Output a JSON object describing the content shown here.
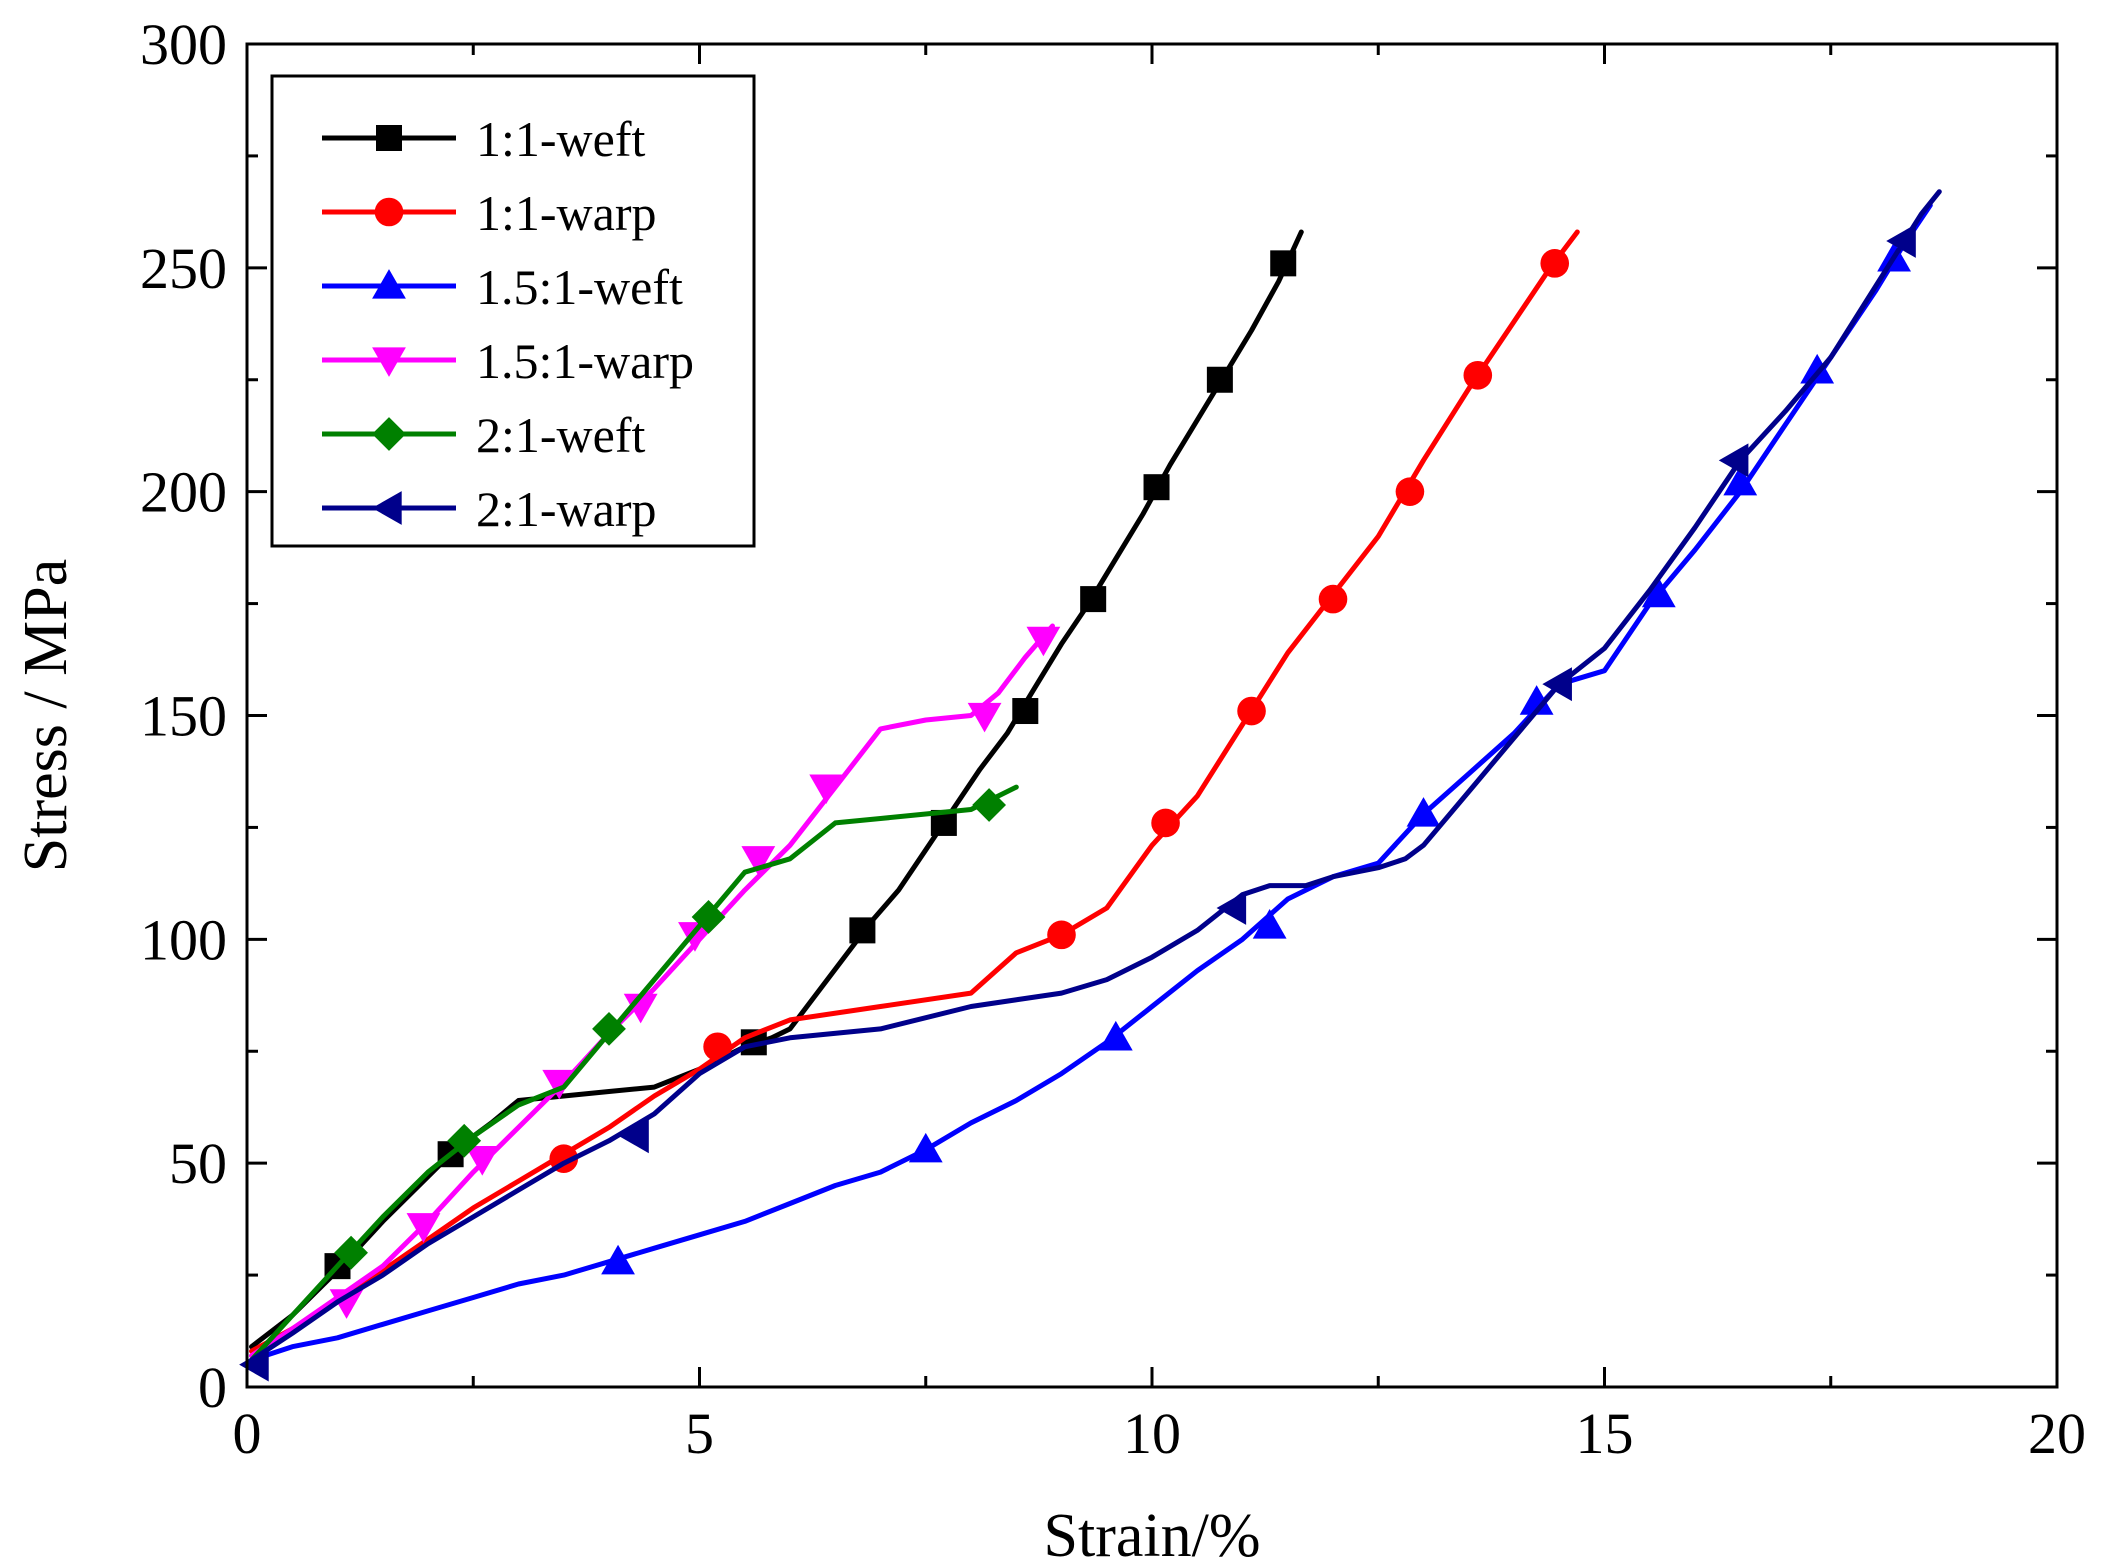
{
  "chart_data": {
    "type": "line",
    "title": "",
    "xlabel": "Strain/%",
    "ylabel": "Stress / MPa",
    "xlim": [
      0,
      20
    ],
    "ylim": [
      0,
      300
    ],
    "xticks": [
      0,
      5,
      10,
      15,
      20
    ],
    "yticks": [
      0,
      50,
      100,
      150,
      200,
      250,
      300
    ],
    "xtick_labels": [
      "0",
      "5",
      "10",
      "15",
      "20"
    ],
    "ytick_labels": [
      "0",
      "50",
      "100",
      "150",
      "200",
      "250",
      "300"
    ],
    "grid": false,
    "legend_position": "top-left",
    "series": [
      {
        "name": "1:1-weft",
        "color": "#000000",
        "marker": "square",
        "points": [
          [
            0.05,
            9
          ],
          [
            0.5,
            16
          ],
          [
            1,
            26
          ],
          [
            1.5,
            37
          ],
          [
            2,
            47
          ],
          [
            2.3,
            53
          ],
          [
            2.7,
            59
          ],
          [
            3,
            64
          ],
          [
            3.5,
            65
          ],
          [
            4,
            66
          ],
          [
            4.5,
            67
          ],
          [
            5,
            71
          ],
          [
            5.5,
            76
          ],
          [
            5.8,
            78
          ],
          [
            6,
            80
          ],
          [
            6.3,
            88
          ],
          [
            6.6,
            96
          ],
          [
            6.9,
            104
          ],
          [
            7.2,
            111
          ],
          [
            7.5,
            120
          ],
          [
            7.8,
            129
          ],
          [
            8.1,
            138
          ],
          [
            8.4,
            146
          ],
          [
            8.7,
            156
          ],
          [
            9,
            166
          ],
          [
            9.3,
            175
          ],
          [
            9.6,
            185
          ],
          [
            9.9,
            195
          ],
          [
            10.2,
            206
          ],
          [
            10.5,
            216
          ],
          [
            10.8,
            226
          ],
          [
            11.1,
            236
          ],
          [
            11.4,
            247
          ],
          [
            11.65,
            258
          ]
        ],
        "markers": [
          [
            1,
            27
          ],
          [
            2.25,
            52
          ],
          [
            5.6,
            77
          ],
          [
            6.8,
            102
          ],
          [
            7.7,
            126
          ],
          [
            8.6,
            151
          ],
          [
            9.35,
            176
          ],
          [
            10.05,
            201
          ],
          [
            10.75,
            225
          ],
          [
            11.45,
            251
          ]
        ]
      },
      {
        "name": "1:1-warp",
        "color": "#ff0000",
        "marker": "circle",
        "points": [
          [
            0.05,
            8
          ],
          [
            0.5,
            13
          ],
          [
            1,
            19
          ],
          [
            1.5,
            26
          ],
          [
            2,
            33
          ],
          [
            2.5,
            40
          ],
          [
            3,
            46
          ],
          [
            3.5,
            52
          ],
          [
            4,
            58
          ],
          [
            4.5,
            65
          ],
          [
            5,
            71
          ],
          [
            5.5,
            78
          ],
          [
            6,
            82
          ],
          [
            7,
            85
          ],
          [
            8,
            88
          ],
          [
            8.5,
            97
          ],
          [
            9,
            101
          ],
          [
            9.5,
            107
          ],
          [
            10,
            121
          ],
          [
            10.5,
            132
          ],
          [
            11,
            148
          ],
          [
            11.5,
            164
          ],
          [
            12,
            177
          ],
          [
            12.5,
            190
          ],
          [
            13,
            207
          ],
          [
            13.5,
            223
          ],
          [
            14,
            238
          ],
          [
            14.4,
            250
          ],
          [
            14.7,
            258
          ]
        ],
        "markers": [
          [
            3.5,
            51
          ],
          [
            5.2,
            76
          ],
          [
            9,
            101
          ],
          [
            10.15,
            126
          ],
          [
            11.1,
            151
          ],
          [
            12,
            176
          ],
          [
            12.85,
            200
          ],
          [
            13.6,
            226
          ],
          [
            14.45,
            251
          ]
        ]
      },
      {
        "name": "1.5:1-weft",
        "color": "#0000ff",
        "marker": "triangle-up",
        "points": [
          [
            0.05,
            6
          ],
          [
            0.5,
            9
          ],
          [
            1,
            11
          ],
          [
            1.5,
            14
          ],
          [
            2,
            17
          ],
          [
            2.5,
            20
          ],
          [
            3,
            23
          ],
          [
            3.5,
            25
          ],
          [
            4,
            28
          ],
          [
            4.5,
            31
          ],
          [
            5,
            34
          ],
          [
            5.5,
            37
          ],
          [
            6,
            41
          ],
          [
            6.5,
            45
          ],
          [
            7,
            48
          ],
          [
            7.5,
            53
          ],
          [
            8,
            59
          ],
          [
            8.5,
            64
          ],
          [
            9,
            70
          ],
          [
            9.5,
            77
          ],
          [
            10,
            85
          ],
          [
            10.5,
            93
          ],
          [
            11,
            100
          ],
          [
            11.5,
            109
          ],
          [
            12,
            114
          ],
          [
            12.5,
            117
          ],
          [
            13,
            128
          ],
          [
            13.5,
            137
          ],
          [
            14,
            146
          ],
          [
            14.5,
            157
          ],
          [
            15,
            160
          ],
          [
            15.5,
            175
          ],
          [
            16,
            187
          ],
          [
            16.5,
            200
          ],
          [
            17,
            215
          ],
          [
            17.5,
            230
          ],
          [
            18,
            245
          ],
          [
            18.3,
            255
          ],
          [
            18.6,
            264
          ]
        ],
        "markers": [
          [
            4.1,
            28
          ],
          [
            7.5,
            53
          ],
          [
            9.6,
            78
          ],
          [
            11.3,
            103
          ],
          [
            13,
            128
          ],
          [
            14.25,
            153
          ],
          [
            15.6,
            177
          ],
          [
            16.5,
            202
          ],
          [
            17.35,
            227
          ],
          [
            18.2,
            252
          ]
        ]
      },
      {
        "name": "1.5:1-warp",
        "color": "#ff00ff",
        "marker": "triangle-down",
        "points": [
          [
            0.05,
            7
          ],
          [
            0.5,
            13
          ],
          [
            1,
            20
          ],
          [
            1.5,
            27
          ],
          [
            2,
            37
          ],
          [
            2.5,
            48
          ],
          [
            3,
            58
          ],
          [
            3.5,
            68
          ],
          [
            4,
            79
          ],
          [
            4.5,
            89
          ],
          [
            5,
            100
          ],
          [
            5.5,
            111
          ],
          [
            6,
            121
          ],
          [
            6.5,
            134
          ],
          [
            7,
            147
          ],
          [
            7.5,
            149
          ],
          [
            8,
            150
          ],
          [
            8.3,
            155
          ],
          [
            8.6,
            163
          ],
          [
            8.9,
            170
          ]
        ],
        "markers": [
          [
            1.1,
            19
          ],
          [
            1.95,
            36
          ],
          [
            2.6,
            51
          ],
          [
            3.45,
            68
          ],
          [
            4.35,
            85
          ],
          [
            4.95,
            101
          ],
          [
            5.65,
            118
          ],
          [
            6.4,
            134
          ],
          [
            8.15,
            150
          ],
          [
            8.8,
            167
          ]
        ]
      },
      {
        "name": "2:1-weft",
        "color": "#008000",
        "marker": "diamond",
        "points": [
          [
            0.05,
            6
          ],
          [
            0.5,
            16
          ],
          [
            1,
            27
          ],
          [
            1.5,
            38
          ],
          [
            2,
            48
          ],
          [
            2.5,
            56
          ],
          [
            3,
            63
          ],
          [
            3.5,
            67
          ],
          [
            4,
            79
          ],
          [
            4.5,
            91
          ],
          [
            5,
            103
          ],
          [
            5.5,
            115
          ],
          [
            6,
            118
          ],
          [
            6.5,
            126
          ],
          [
            7,
            127
          ],
          [
            7.5,
            128
          ],
          [
            8,
            129
          ],
          [
            8.5,
            134
          ]
        ],
        "markers": [
          [
            1.15,
            30
          ],
          [
            2.4,
            55
          ],
          [
            4,
            80
          ],
          [
            5.1,
            105
          ],
          [
            8.2,
            130
          ]
        ]
      },
      {
        "name": "2:1-warp",
        "color": "#00008b",
        "marker": "triangle-left",
        "points": [
          [
            0.05,
            6
          ],
          [
            0.5,
            12
          ],
          [
            1,
            19
          ],
          [
            1.5,
            25
          ],
          [
            2,
            32
          ],
          [
            2.5,
            38
          ],
          [
            3,
            44
          ],
          [
            3.5,
            50
          ],
          [
            4,
            55
          ],
          [
            4.5,
            61
          ],
          [
            5,
            70
          ],
          [
            5.5,
            76
          ],
          [
            6,
            78
          ],
          [
            7,
            80
          ],
          [
            8,
            85
          ],
          [
            9,
            88
          ],
          [
            9.5,
            91
          ],
          [
            10,
            96
          ],
          [
            10.5,
            102
          ],
          [
            11,
            110
          ],
          [
            11.3,
            112
          ],
          [
            11.7,
            112
          ],
          [
            12,
            114
          ],
          [
            12.5,
            116
          ],
          [
            12.8,
            118
          ],
          [
            13,
            121
          ],
          [
            13.5,
            133
          ],
          [
            14,
            145
          ],
          [
            14.5,
            157
          ],
          [
            15,
            165
          ],
          [
            15.5,
            178
          ],
          [
            16,
            192
          ],
          [
            16.5,
            207
          ],
          [
            17,
            218
          ],
          [
            17.5,
            230
          ],
          [
            18,
            246
          ],
          [
            18.5,
            262
          ],
          [
            18.7,
            267
          ]
        ],
        "markers": [
          [
            0.1,
            5
          ],
          [
            4.3,
            56
          ],
          [
            10.9,
            107
          ],
          [
            14.5,
            157
          ],
          [
            16.45,
            207
          ],
          [
            18.3,
            256
          ]
        ]
      }
    ]
  }
}
